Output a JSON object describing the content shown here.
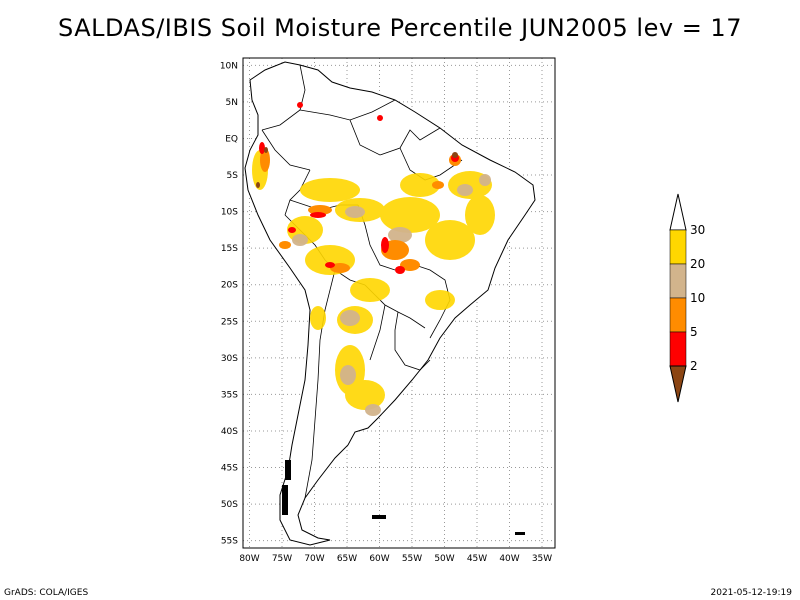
{
  "title": "SALDAS/IBIS Soil Moisture Percentile JUN2005 lev = 17",
  "map": {
    "lat_labels": [
      "10N",
      "5N",
      "EQ",
      "5S",
      "10S",
      "15S",
      "20S",
      "25S",
      "30S",
      "35S",
      "40S",
      "45S",
      "50S",
      "55S"
    ],
    "lon_labels": [
      "80W",
      "75W",
      "70W",
      "65W",
      "60W",
      "55W",
      "50W",
      "45W",
      "40W",
      "35W"
    ],
    "lat_values": [
      10,
      5,
      0,
      -5,
      -10,
      -15,
      -20,
      -25,
      -30,
      -35,
      -40,
      -45,
      -50,
      -55
    ],
    "lon_values": [
      -80,
      -75,
      -70,
      -65,
      -60,
      -55,
      -50,
      -45,
      -40,
      -35
    ],
    "lat_range": [
      -56,
      11
    ],
    "lon_range": [
      -81,
      -33
    ],
    "grid": "dotted"
  },
  "legend": {
    "labels": [
      "2",
      "5",
      "10",
      "20",
      "30"
    ],
    "bins": [
      {
        "range": "<2",
        "color": "#8b4513"
      },
      {
        "range": "2-5",
        "color": "#ff0000"
      },
      {
        "range": "5-10",
        "color": "#ff8c00"
      },
      {
        "range": "10-20",
        "color": "#d2b48c"
      },
      {
        "range": "20-30",
        "color": "#ffd700"
      },
      {
        "range": ">30",
        "color": "#ffffff"
      }
    ]
  },
  "footer": {
    "left": "GrADS: COLA/IGES",
    "right": "2021-05-12-19:19"
  }
}
